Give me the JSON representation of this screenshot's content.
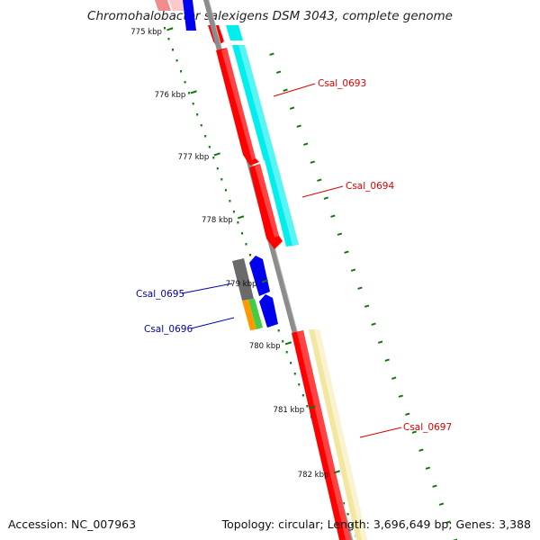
{
  "title": "Chromohalobacter salexigens DSM 3043, complete genome",
  "footer": {
    "accession": "Accession: NC_007963",
    "summary": "Topology: circular; Length: 3,696,649 bp; Genes: 3,388"
  },
  "ticks": [
    "775 kbp",
    "776 kbp",
    "777 kbp",
    "778 kbp",
    "779 kbp",
    "780 kbp",
    "781 kbp",
    "782 kbp"
  ],
  "gene_labels": [
    {
      "name": "Csal_0693",
      "color": "#dd0000"
    },
    {
      "name": "Csal_0694",
      "color": "#dd0000"
    },
    {
      "name": "Csal_0695",
      "color": "#0000aa"
    },
    {
      "name": "Csal_0696",
      "color": "#0000aa"
    },
    {
      "name": "Csal_0697",
      "color": "#dd0000"
    }
  ],
  "colors": {
    "backbone": "#8c8c8c",
    "cds": "#ff0000",
    "cog_cyan": "#00eeee",
    "cog_yellow": "#f2e6a0",
    "cog_gray": "#707070",
    "cog_orange": "#ff9900",
    "cog_green": "#44cc44",
    "rna_blue": "#0000ee",
    "ruler": "#117711"
  }
}
